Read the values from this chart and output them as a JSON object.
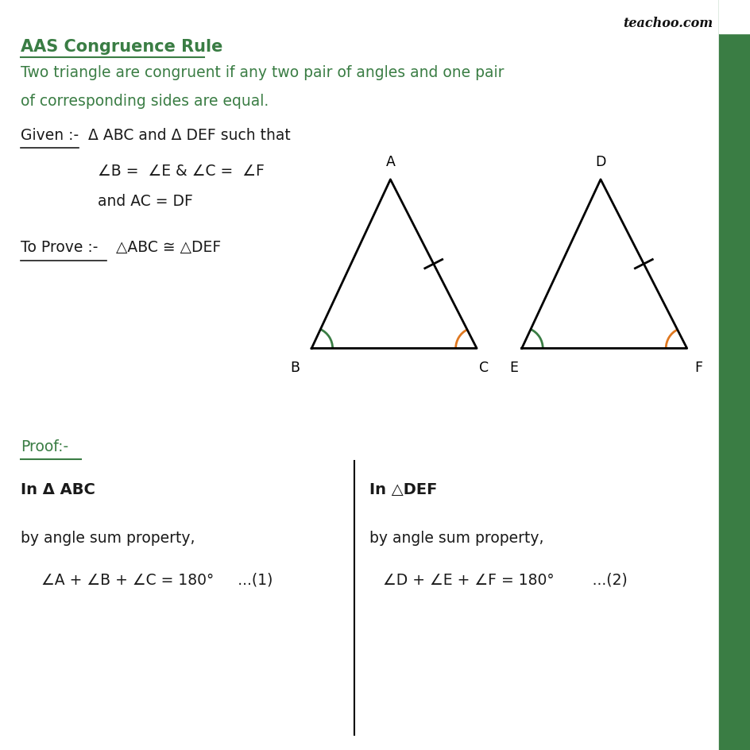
{
  "title": "AAS Congruence Rule",
  "subtitle_line1": "Two triangle are congruent if any two pair of angles and one pair",
  "subtitle_line2": "of corresponding sides are equal.",
  "title_color": "#3a7d44",
  "text_color": "#3a7d44",
  "black_text_color": "#1a1a1a",
  "background_color": "#ffffff",
  "right_bar_color": "#3a7d44",
  "watermark": "teachoo.com",
  "given_label": "Given :-",
  "given_rest": "  Δ ABC and Δ DEF such that",
  "given_line2": "∠B =  ∠E & ∠C =  ∠F",
  "given_line3": "and AC = DF",
  "to_prove_label": "To Prove :-",
  "to_prove_rest": "  △ABC ≅ △DEF",
  "proof_label": "Proof:-",
  "left_col_head": "In Δ ABC",
  "left_col_line1": "by angle sum property,",
  "left_col_line2": "∠A + ∠B + ∠C = 180°     ...(1)",
  "right_col_head": "In △DEF",
  "right_col_line1": "by angle sum property,",
  "right_col_line2": "∠D + ∠E + ∠F = 180°        ...(2)",
  "tri1": {
    "B": [
      0.415,
      0.535
    ],
    "C": [
      0.635,
      0.535
    ],
    "A": [
      0.52,
      0.76
    ]
  },
  "tri2": {
    "E": [
      0.695,
      0.535
    ],
    "F": [
      0.915,
      0.535
    ],
    "D": [
      0.8,
      0.76
    ]
  },
  "angle_color_B": "#3a7d44",
  "angle_color_C": "#e07820",
  "angle_color_E": "#3a7d44",
  "angle_color_F": "#e07820"
}
